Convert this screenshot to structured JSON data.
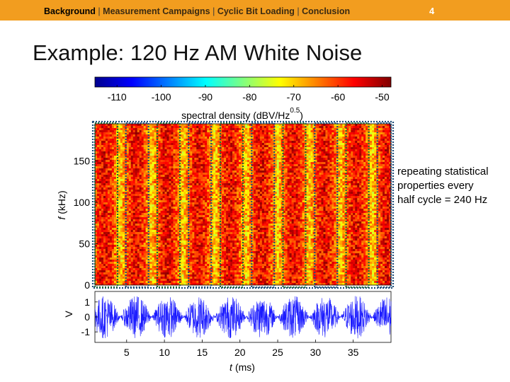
{
  "header": {
    "breadcrumb": [
      {
        "label": "Background",
        "active": true
      },
      {
        "label": "Measurement Campaigns",
        "active": false
      },
      {
        "label": "Cyclic Bit Loading",
        "active": false
      },
      {
        "label": "Conclusion",
        "active": false
      }
    ],
    "separator": "|",
    "page_number": "4",
    "bar_color": "#f29d1f"
  },
  "title": "Example: 120 Hz AM White Noise",
  "annotation": {
    "line1": "repeating statistical",
    "line2": "properties every",
    "line3": "half cycle = 240 Hz"
  },
  "chart_data": [
    {
      "type": "colorbar",
      "label_main": "spectral density (dBV/Hz",
      "label_sup": "0.5",
      "label_close": ")",
      "ticks": [
        -110,
        -100,
        -90,
        -80,
        -70,
        -60,
        -50
      ],
      "range": [
        -115,
        -48
      ],
      "colormap": "jet"
    },
    {
      "type": "heatmap",
      "title": "",
      "ylabel_var": "f",
      "ylabel_unit": "(kHz)",
      "yticks": [
        0,
        50,
        100,
        150
      ],
      "ylim": [
        0,
        195
      ],
      "xlim": [
        0.8,
        40
      ],
      "stripe_period_ms": 4.1667,
      "modulation_hz": 120,
      "half_cycle_hz": 240,
      "stripe_starts_ms": [
        0.8,
        4.9,
        9.05,
        13.2,
        17.4,
        21.55,
        25.7,
        29.9,
        34.05,
        38.2
      ],
      "stripe_width_ms": 3.0
    },
    {
      "type": "line",
      "xlabel_var": "t",
      "xlabel_unit": "(ms)",
      "ylabel": "V",
      "yticks": [
        -1,
        0,
        1
      ],
      "ylim": [
        -1.7,
        1.7
      ],
      "xticks": [
        5,
        10,
        15,
        20,
        25,
        30,
        35
      ],
      "xlim": [
        0.8,
        40
      ],
      "color": "#1a1aff",
      "envelope": "abs(sin(2*pi*120*t))"
    }
  ]
}
